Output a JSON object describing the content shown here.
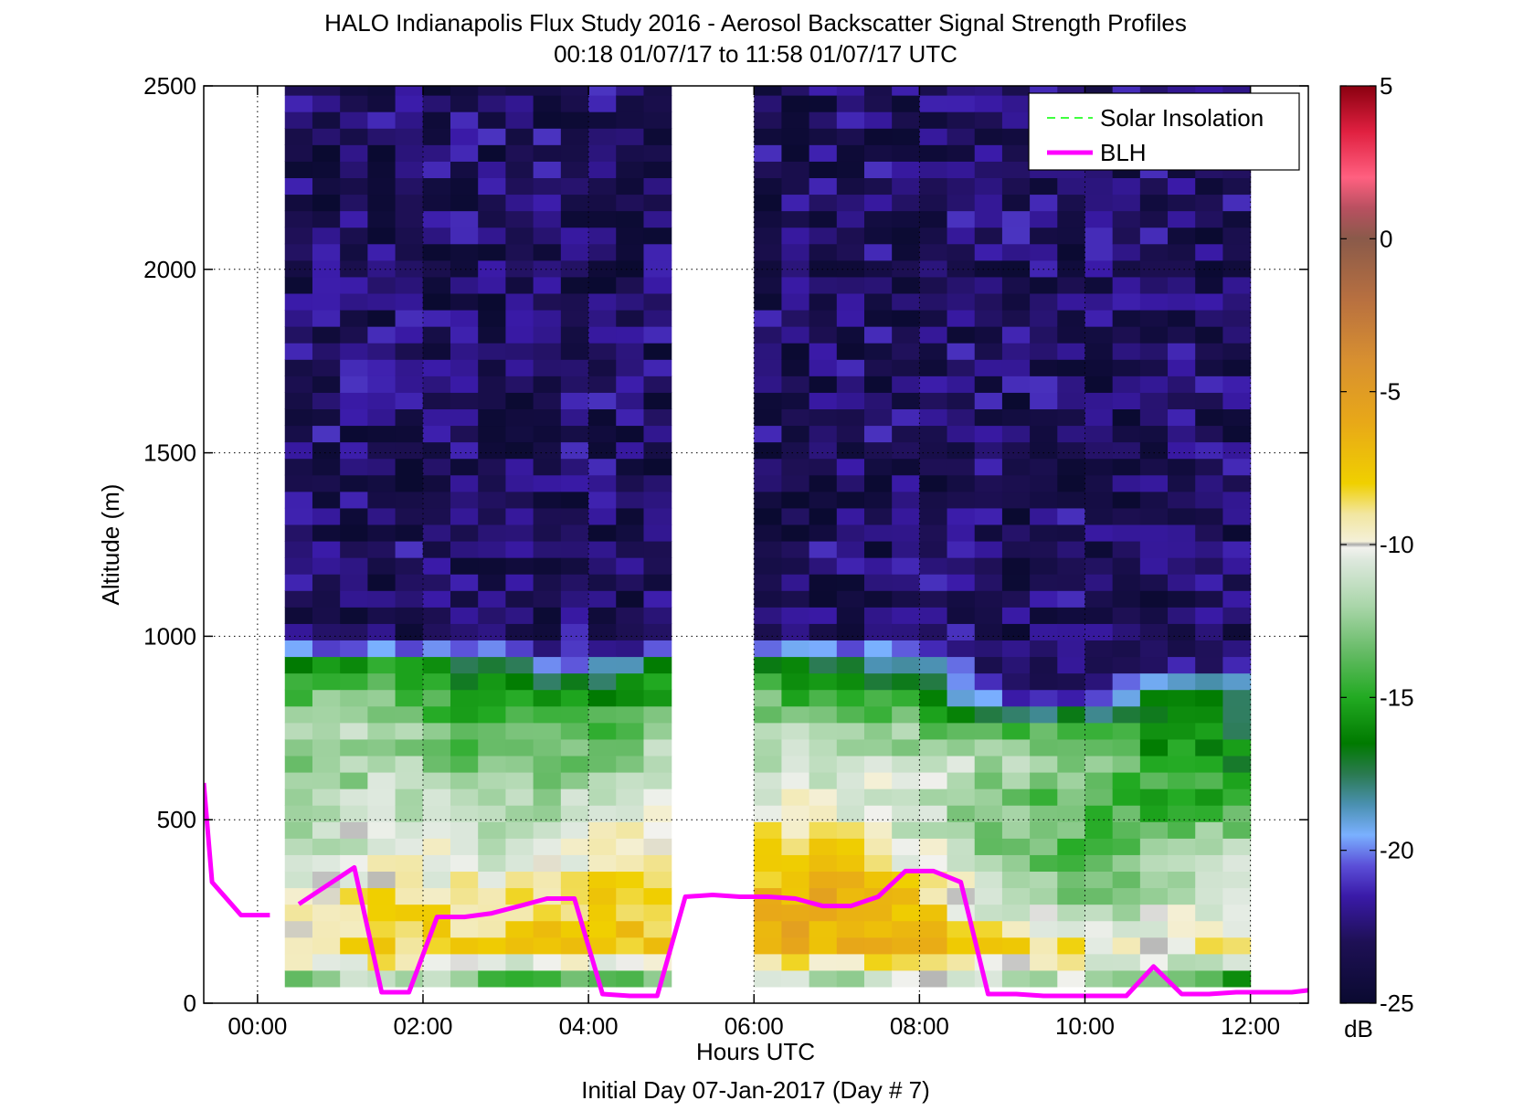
{
  "chart_data": {
    "type": "heatmap",
    "title": "HALO Indianapolis Flux Study 2016 - Aerosol Backscatter Signal Strength Profiles",
    "subtitle": "00:18 01/07/17 to 11:58 01/07/17  UTC",
    "xlabel": "Hours UTC",
    "xlabel2": "Initial Day 07-Jan-2017 (Day # 7)",
    "ylabel": "Altitude (m)",
    "xlim": [
      -0.65,
      12.7
    ],
    "ylim": [
      0,
      2500
    ],
    "grid": true,
    "x_ticks": [
      {
        "value": 0,
        "label": "00:00"
      },
      {
        "value": 2,
        "label": "02:00"
      },
      {
        "value": 4,
        "label": "04:00"
      },
      {
        "value": 6,
        "label": "06:00"
      },
      {
        "value": 8,
        "label": "08:00"
      },
      {
        "value": 10,
        "label": "10:00"
      },
      {
        "value": 12,
        "label": "12:00"
      }
    ],
    "y_ticks": [
      {
        "value": 0,
        "label": "0"
      },
      {
        "value": 500,
        "label": "500"
      },
      {
        "value": 1000,
        "label": "1000"
      },
      {
        "value": 1500,
        "label": "1500"
      },
      {
        "value": 2000,
        "label": "2000"
      },
      {
        "value": 2500,
        "label": "2500"
      }
    ],
    "data_segments": [
      {
        "t_start": 0.33,
        "t_end": 5.0
      },
      {
        "t_start": 6.0,
        "t_end": 12.0
      }
    ],
    "altitude_bottom_m": 45,
    "altitude_top_m": 2500,
    "gate_spacing_m": 45,
    "time_step_h": 0.33,
    "boundary_layer_profile_dB": {
      "altitude_m": [
        60,
        150,
        300,
        450,
        550,
        650,
        750,
        850,
        930,
        980
      ],
      "first_segment": {
        "hours": [
          0.33,
          1.5,
          2.5,
          3.5,
          4.5,
          5.0
        ],
        "dB": [
          [
            -13,
            -11,
            -13.5,
            -14.5,
            -15,
            -13
          ],
          [
            -9,
            -8.5,
            -8,
            -7.5,
            -7.5,
            -8
          ],
          [
            -10,
            -9,
            -9.5,
            -9,
            -8,
            -8
          ],
          [
            -13,
            -10,
            -11,
            -11,
            -10,
            -10
          ],
          [
            -13,
            -11,
            -12,
            -12,
            -11,
            -11
          ],
          [
            -13,
            -12,
            -13,
            -13,
            -12,
            -11
          ],
          [
            -12,
            -12,
            -14,
            -14,
            -13.5,
            -13
          ],
          [
            -14,
            -13,
            -16,
            -16,
            -16,
            -15
          ],
          [
            -17,
            -15,
            -17,
            -20,
            -19,
            -17
          ],
          [
            -22,
            -21,
            -22,
            -22,
            -22,
            -22
          ]
        ]
      },
      "second_segment": {
        "hours": [
          6.0,
          7.0,
          8.0,
          9.0,
          10.0,
          11.0,
          12.0
        ],
        "dB": [
          [
            -10,
            -14,
            -11,
            -12,
            -11,
            -14,
            -16
          ],
          [
            -6.5,
            -6,
            -7,
            -8,
            -9,
            -9.5,
            -9
          ],
          [
            -7,
            -6.5,
            -8,
            -12,
            -13,
            -12,
            -11
          ],
          [
            -8,
            -9,
            -11,
            -13,
            -14,
            -13,
            -12
          ],
          [
            -10,
            -10,
            -11,
            -13,
            -14,
            -15,
            -14
          ],
          [
            -11,
            -11,
            -11,
            -12,
            -13,
            -15,
            -16
          ],
          [
            -12,
            -12,
            -13,
            -14,
            -15,
            -16,
            -17
          ],
          [
            -14,
            -15,
            -16,
            -22,
            -22,
            -16,
            -19
          ],
          [
            -17,
            -18,
            -19,
            -23,
            -23,
            -22,
            -23
          ],
          [
            -20,
            -21,
            -21,
            -23,
            -23,
            -23,
            -23
          ]
        ]
      },
      "upper_air_dB_range": [
        -25,
        -21
      ]
    },
    "series": [
      {
        "name": "Solar Insolation",
        "type": "line",
        "style": "dashed",
        "color": "#00ff00",
        "x": [],
        "y": []
      },
      {
        "name": "BLH",
        "type": "line",
        "style": "solid",
        "color": "#ff00ff",
        "segments": [
          {
            "x": [
              -0.65,
              -0.55,
              -0.2,
              0.15
            ],
            "y": [
              600,
              330,
              240,
              240
            ]
          },
          {
            "x": [
              0.5,
              1.17,
              1.5,
              1.83,
              2.17,
              2.5,
              2.83,
              3.17,
              3.5,
              3.83,
              4.17,
              4.5,
              4.83,
              5.17,
              5.5,
              5.83,
              6.17,
              6.5,
              6.83,
              7.17,
              7.5,
              7.83,
              8.17,
              8.5,
              8.83,
              9.17,
              9.5,
              9.83,
              10.17,
              10.5,
              10.83,
              11.17,
              11.5,
              11.83,
              12.17,
              12.5,
              12.7
            ],
            "y": [
              270,
              370,
              30,
              30,
              235,
              235,
              245,
              265,
              285,
              285,
              25,
              20,
              20,
              290,
              295,
              290,
              290,
              285,
              265,
              265,
              290,
              360,
              360,
              330,
              25,
              25,
              20,
              20,
              20,
              20,
              100,
              25,
              25,
              30,
              30,
              30,
              35
            ]
          }
        ]
      }
    ],
    "legend": {
      "placement": "top-right",
      "entries": [
        "Solar Insolation",
        "BLH"
      ]
    },
    "colorbar": {
      "label": "dB",
      "range": [
        -25,
        5
      ],
      "ticks": [
        5,
        0,
        -5,
        -10,
        -15,
        -20,
        -25
      ],
      "tick_labels": [
        "5",
        "0",
        "-5",
        "-10",
        "-15",
        "-20",
        "-25"
      ],
      "colors": [
        {
          "value": -25,
          "color": "#0a0a30"
        },
        {
          "value": -23,
          "color": "#1e1055"
        },
        {
          "value": -21.5,
          "color": "#3a1aa8"
        },
        {
          "value": -20.5,
          "color": "#5b4fd8"
        },
        {
          "value": -19.5,
          "color": "#7ab0ff"
        },
        {
          "value": -18.5,
          "color": "#4a90b0"
        },
        {
          "value": -17.5,
          "color": "#2a7a50"
        },
        {
          "value": -16.5,
          "color": "#007a00"
        },
        {
          "value": -15,
          "color": "#22aa22"
        },
        {
          "value": -13.5,
          "color": "#66bb66"
        },
        {
          "value": -12,
          "color": "#aad6aa"
        },
        {
          "value": -10.5,
          "color": "#dde8dd"
        },
        {
          "value": -10.1,
          "color": "#f2f2ee"
        },
        {
          "value": -10,
          "color": "#aaaaaa"
        },
        {
          "value": -9.9,
          "color": "#f4f0d8"
        },
        {
          "value": -9,
          "color": "#f2e6a0"
        },
        {
          "value": -8,
          "color": "#f0d000"
        },
        {
          "value": -6,
          "color": "#e8a818"
        },
        {
          "value": -4,
          "color": "#d89030"
        },
        {
          "value": -2,
          "color": "#b87040"
        },
        {
          "value": 0,
          "color": "#8a5a4a"
        },
        {
          "value": 1,
          "color": "#b85060"
        },
        {
          "value": 2,
          "color": "#ff6080"
        },
        {
          "value": 3.5,
          "color": "#e02040"
        },
        {
          "value": 5,
          "color": "#8a0010"
        }
      ]
    }
  }
}
